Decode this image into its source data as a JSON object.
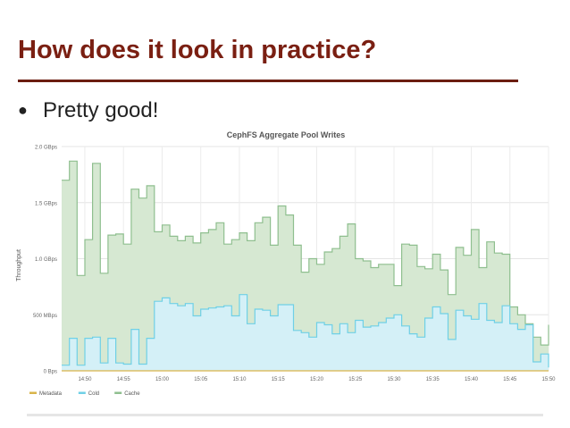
{
  "slide": {
    "title": "How does it look in practice?",
    "bullet": "Pretty good!"
  },
  "chart_data": {
    "type": "area",
    "title": "CephFS Aggregate Pool Writes",
    "ylabel": "Throughput",
    "xlabel": "",
    "y_unit": "GBps",
    "ylim": [
      0,
      2.0
    ],
    "y_ticks": [
      {
        "value": 0,
        "label": "0 Bps"
      },
      {
        "value": 0.5,
        "label": "500 MBps"
      },
      {
        "value": 1.0,
        "label": "1.0 GBps"
      },
      {
        "value": 1.5,
        "label": "1.5 GBps"
      },
      {
        "value": 2.0,
        "label": "2.0 GBps"
      }
    ],
    "x_range": [
      "14:47",
      "15:50"
    ],
    "x_ticks": [
      "14:50",
      "14:55",
      "15:00",
      "15:05",
      "15:10",
      "15:15",
      "15:20",
      "15:25",
      "15:30",
      "15:35",
      "15:40",
      "15:45",
      "15:50"
    ],
    "x": [
      "14:47",
      "14:48",
      "14:49",
      "14:50",
      "14:51",
      "14:52",
      "14:53",
      "14:54",
      "14:55",
      "14:56",
      "14:57",
      "14:58",
      "14:59",
      "15:00",
      "15:01",
      "15:02",
      "15:03",
      "15:04",
      "15:05",
      "15:06",
      "15:07",
      "15:08",
      "15:09",
      "15:10",
      "15:11",
      "15:12",
      "15:13",
      "15:14",
      "15:15",
      "15:16",
      "15:17",
      "15:18",
      "15:19",
      "15:20",
      "15:21",
      "15:22",
      "15:23",
      "15:24",
      "15:25",
      "15:26",
      "15:27",
      "15:28",
      "15:29",
      "15:30",
      "15:31",
      "15:32",
      "15:33",
      "15:34",
      "15:35",
      "15:36",
      "15:37",
      "15:38",
      "15:39",
      "15:40",
      "15:41",
      "15:42",
      "15:43",
      "15:44",
      "15:45",
      "15:46",
      "15:47",
      "15:48",
      "15:49",
      "15:50"
    ],
    "series": [
      {
        "name": "Metadata",
        "color": "#d9b44a",
        "values": [
          0,
          0,
          0,
          0,
          0,
          0,
          0,
          0,
          0,
          0,
          0,
          0,
          0,
          0,
          0,
          0,
          0,
          0,
          0,
          0,
          0,
          0,
          0,
          0,
          0,
          0,
          0,
          0,
          0,
          0,
          0,
          0,
          0,
          0,
          0,
          0,
          0,
          0,
          0,
          0,
          0,
          0,
          0,
          0,
          0,
          0,
          0,
          0,
          0,
          0,
          0,
          0,
          0,
          0,
          0,
          0,
          0,
          0,
          0,
          0,
          0,
          0,
          0,
          0
        ]
      },
      {
        "name": "Cold",
        "color": "#6fd0e6",
        "fill": "#d4f0f7",
        "values": [
          0.05,
          0.29,
          0.05,
          0.29,
          0.3,
          0.07,
          0.29,
          0.07,
          0.06,
          0.37,
          0.06,
          0.29,
          0.62,
          0.65,
          0.6,
          0.58,
          0.6,
          0.49,
          0.55,
          0.56,
          0.57,
          0.58,
          0.49,
          0.68,
          0.42,
          0.55,
          0.54,
          0.49,
          0.59,
          0.59,
          0.36,
          0.34,
          0.3,
          0.43,
          0.41,
          0.33,
          0.42,
          0.34,
          0.45,
          0.39,
          0.4,
          0.43,
          0.47,
          0.5,
          0.4,
          0.33,
          0.3,
          0.47,
          0.57,
          0.51,
          0.28,
          0.54,
          0.49,
          0.46,
          0.6,
          0.45,
          0.43,
          0.58,
          0.42,
          0.37,
          0.41,
          0.08,
          0.15,
          0.03
        ]
      },
      {
        "name": "Cache",
        "color": "#8fbf8f",
        "fill": "#d6e8d2",
        "values": [
          1.65,
          1.58,
          0.8,
          0.88,
          1.55,
          0.8,
          0.92,
          1.15,
          1.07,
          1.25,
          1.48,
          1.36,
          0.62,
          0.65,
          0.6,
          0.58,
          0.6,
          0.65,
          0.68,
          0.7,
          0.75,
          0.55,
          0.68,
          0.55,
          0.74,
          0.77,
          0.83,
          0.63,
          0.88,
          0.8,
          0.76,
          0.54,
          0.7,
          0.52,
          0.65,
          0.76,
          0.78,
          0.97,
          0.55,
          0.59,
          0.52,
          0.52,
          0.48,
          0.26,
          0.73,
          0.79,
          0.63,
          0.44,
          0.47,
          0.39,
          0.4,
          0.56,
          0.54,
          0.8,
          0.32,
          0.7,
          0.62,
          0.46,
          0.15,
          0.13,
          0.01,
          0.22,
          0.08,
          0.38
        ]
      }
    ],
    "grid": true,
    "legend": "bottom-left"
  }
}
